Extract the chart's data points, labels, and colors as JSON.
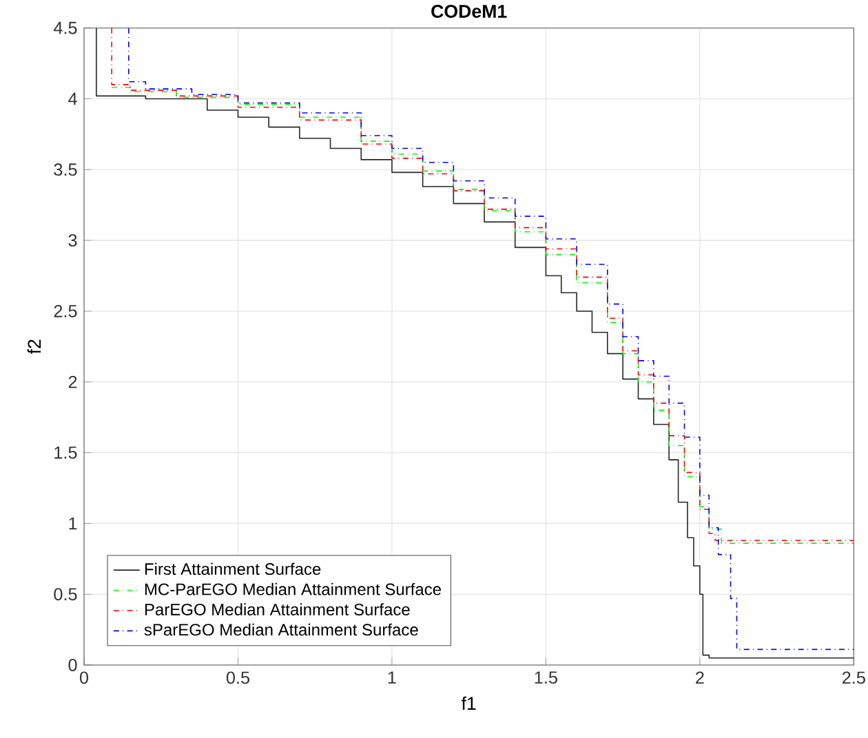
{
  "chart_data": {
    "type": "step",
    "title": "CODeM1",
    "xlabel": "f1",
    "ylabel": "f2",
    "xlim": [
      0,
      2.5
    ],
    "ylim": [
      0,
      4.5
    ],
    "xticks": [
      0,
      0.5,
      1,
      1.5,
      2,
      2.5
    ],
    "yticks": [
      0,
      0.5,
      1,
      1.5,
      2,
      2.5,
      3,
      3.5,
      4,
      4.5
    ],
    "grid": true,
    "legend": "bottom left",
    "series": [
      {
        "name": "First Attainment Surface",
        "color": "#262626",
        "line_style": "solid",
        "x": [
          0.04,
          0.04,
          0.2,
          0.4,
          0.5,
          0.6,
          0.7,
          0.8,
          0.9,
          1.0,
          1.1,
          1.2,
          1.3,
          1.4,
          1.5,
          1.55,
          1.6,
          1.65,
          1.7,
          1.75,
          1.8,
          1.85,
          1.9,
          1.93,
          1.96,
          1.98,
          2.0,
          2.01,
          2.03,
          2.5
        ],
        "values": [
          4.5,
          4.02,
          4.0,
          3.92,
          3.87,
          3.8,
          3.72,
          3.65,
          3.57,
          3.48,
          3.38,
          3.26,
          3.13,
          2.95,
          2.75,
          2.63,
          2.5,
          2.35,
          2.2,
          2.02,
          1.88,
          1.7,
          1.45,
          1.15,
          0.9,
          0.7,
          0.5,
          0.07,
          0.05,
          0.05
        ]
      },
      {
        "name": "MC-ParEGO Median Attainment Surface",
        "color": "#00ff00",
        "line_style": "dashdot",
        "x": [
          0.09,
          0.15,
          0.3,
          0.5,
          0.7,
          0.9,
          1.0,
          1.1,
          1.2,
          1.3,
          1.4,
          1.5,
          1.6,
          1.7,
          1.75,
          1.8,
          1.85,
          1.9,
          1.95,
          2.0,
          2.03,
          2.07,
          2.5
        ],
        "values": [
          4.08,
          4.05,
          4.01,
          3.96,
          3.87,
          3.7,
          3.61,
          3.49,
          3.36,
          3.21,
          3.06,
          2.9,
          2.7,
          2.42,
          2.2,
          2.0,
          1.8,
          1.55,
          1.33,
          1.12,
          0.96,
          0.86,
          0.86
        ]
      },
      {
        "name": "ParEGO Median Attainment Surface",
        "color": "#ff0000",
        "line_style": "dashdot",
        "x": [
          0.09,
          0.09,
          0.15,
          0.3,
          0.5,
          0.7,
          0.9,
          1.0,
          1.1,
          1.2,
          1.3,
          1.4,
          1.5,
          1.6,
          1.7,
          1.75,
          1.8,
          1.85,
          1.9,
          1.95,
          2.0,
          2.03,
          2.05,
          2.5
        ],
        "values": [
          4.5,
          4.1,
          4.06,
          4.02,
          3.94,
          3.85,
          3.68,
          3.58,
          3.47,
          3.35,
          3.22,
          3.09,
          2.94,
          2.74,
          2.45,
          2.22,
          2.05,
          1.85,
          1.62,
          1.36,
          1.1,
          0.93,
          0.88,
          0.88
        ]
      },
      {
        "name": "sParEGO Median Attainment Surface",
        "color": "#0000ff",
        "line_style": "dashdot",
        "x": [
          0.145,
          0.145,
          0.2,
          0.35,
          0.5,
          0.7,
          0.9,
          1.0,
          1.1,
          1.2,
          1.3,
          1.4,
          1.5,
          1.6,
          1.7,
          1.75,
          1.8,
          1.85,
          1.9,
          1.95,
          2.0,
          2.03,
          2.06,
          2.1,
          2.12,
          2.5
        ],
        "values": [
          4.5,
          4.12,
          4.07,
          4.03,
          3.97,
          3.9,
          3.74,
          3.65,
          3.55,
          3.42,
          3.3,
          3.17,
          3.01,
          2.83,
          2.55,
          2.32,
          2.15,
          2.04,
          1.85,
          1.61,
          1.2,
          0.97,
          0.78,
          0.47,
          0.11,
          0.11
        ]
      }
    ]
  }
}
